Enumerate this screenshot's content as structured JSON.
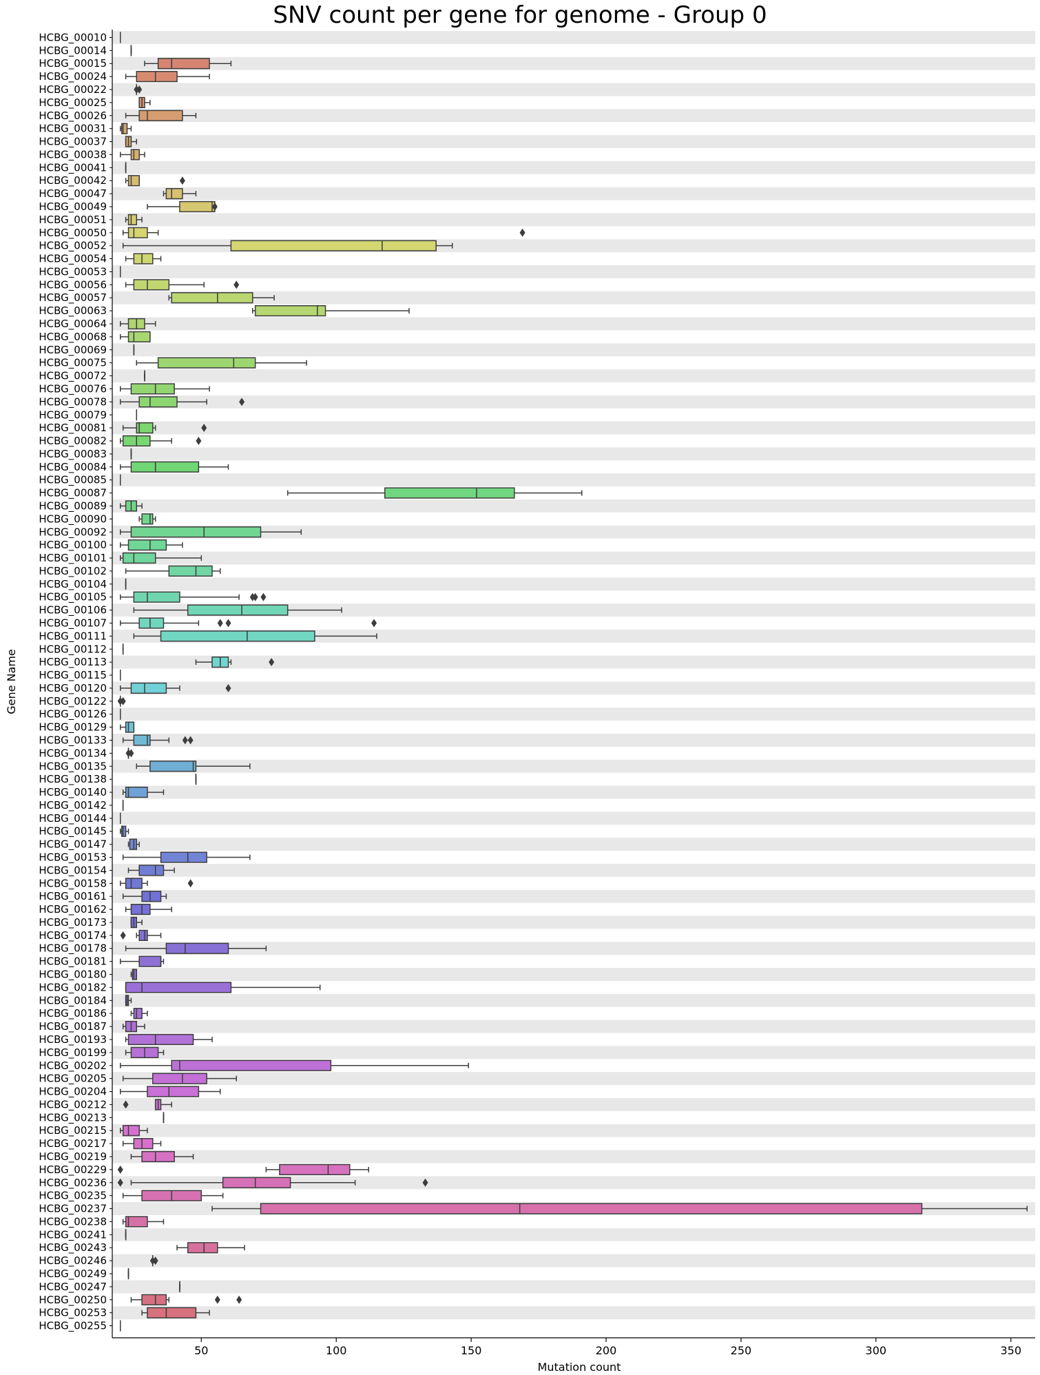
{
  "chart_data": {
    "type": "boxplot-horizontal",
    "title": "SNV count per gene for genome - Group 0",
    "xlabel": "Mutation count",
    "ylabel": "Gene Name",
    "xlim": [
      17,
      359
    ],
    "xticks": [
      50,
      100,
      150,
      200,
      250,
      300,
      350
    ],
    "row_banding": true,
    "orientation": "horizontal",
    "genes": [
      {
        "name": "HCBG_00010",
        "whislo": 20,
        "q1": 20,
        "med": 20,
        "q3": 20,
        "whishi": 20,
        "fliers": []
      },
      {
        "name": "HCBG_00014",
        "whislo": 24,
        "q1": 24,
        "med": 24,
        "q3": 24,
        "whishi": 24,
        "fliers": []
      },
      {
        "name": "HCBG_00015",
        "whislo": 29,
        "q1": 34,
        "med": 39,
        "q3": 53,
        "whishi": 61,
        "fliers": []
      },
      {
        "name": "HCBG_00024",
        "whislo": 22,
        "q1": 26,
        "med": 33,
        "q3": 41,
        "whishi": 53,
        "fliers": []
      },
      {
        "name": "HCBG_00022",
        "whislo": 26,
        "q1": 26,
        "med": 26,
        "q3": 26,
        "whishi": 26,
        "fliers": [
          26,
          27
        ]
      },
      {
        "name": "HCBG_00025",
        "whislo": 27,
        "q1": 27,
        "med": 28,
        "q3": 29,
        "whishi": 31,
        "fliers": []
      },
      {
        "name": "HCBG_00026",
        "whislo": 22,
        "q1": 27,
        "med": 30,
        "q3": 43,
        "whishi": 48,
        "fliers": []
      },
      {
        "name": "HCBG_00031",
        "whislo": 20,
        "q1": 20.5,
        "med": 21,
        "q3": 22.5,
        "whishi": 24,
        "fliers": []
      },
      {
        "name": "HCBG_00037",
        "whislo": 22,
        "q1": 22,
        "med": 23,
        "q3": 24,
        "whishi": 26,
        "fliers": []
      },
      {
        "name": "HCBG_00038",
        "whislo": 20,
        "q1": 24,
        "med": 25,
        "q3": 27,
        "whishi": 29,
        "fliers": []
      },
      {
        "name": "HCBG_00041",
        "whislo": 22,
        "q1": 22,
        "med": 22,
        "q3": 22,
        "whishi": 22,
        "fliers": []
      },
      {
        "name": "HCBG_00042",
        "whislo": 22,
        "q1": 23,
        "med": 24,
        "q3": 27,
        "whishi": 27,
        "fliers": [
          43
        ]
      },
      {
        "name": "HCBG_00047",
        "whislo": 36,
        "q1": 37,
        "med": 39,
        "q3": 43,
        "whishi": 48,
        "fliers": []
      },
      {
        "name": "HCBG_00049",
        "whislo": 30,
        "q1": 42,
        "med": 54,
        "q3": 55,
        "whishi": 55,
        "fliers": [
          55
        ]
      },
      {
        "name": "HCBG_00051",
        "whislo": 22,
        "q1": 23,
        "med": 24,
        "q3": 26,
        "whishi": 28,
        "fliers": []
      },
      {
        "name": "HCBG_00050",
        "whislo": 21,
        "q1": 23,
        "med": 25,
        "q3": 30,
        "whishi": 34,
        "fliers": [
          169
        ]
      },
      {
        "name": "HCBG_00052",
        "whislo": 21,
        "q1": 61,
        "med": 117,
        "q3": 137,
        "whishi": 143,
        "fliers": []
      },
      {
        "name": "HCBG_00054",
        "whislo": 22,
        "q1": 25,
        "med": 28,
        "q3": 32,
        "whishi": 35,
        "fliers": []
      },
      {
        "name": "HCBG_00053",
        "whislo": 20,
        "q1": 20,
        "med": 20,
        "q3": 20,
        "whishi": 20,
        "fliers": []
      },
      {
        "name": "HCBG_00056",
        "whislo": 22,
        "q1": 25,
        "med": 30,
        "q3": 38,
        "whishi": 51,
        "fliers": [
          63
        ]
      },
      {
        "name": "HCBG_00057",
        "whislo": 38,
        "q1": 39,
        "med": 56,
        "q3": 69,
        "whishi": 77,
        "fliers": []
      },
      {
        "name": "HCBG_00063",
        "whislo": 69,
        "q1": 70,
        "med": 93,
        "q3": 96,
        "whishi": 127,
        "fliers": []
      },
      {
        "name": "HCBG_00064",
        "whislo": 20,
        "q1": 23,
        "med": 26,
        "q3": 29,
        "whishi": 33,
        "fliers": []
      },
      {
        "name": "HCBG_00068",
        "whislo": 20,
        "q1": 23,
        "med": 25,
        "q3": 31,
        "whishi": 31,
        "fliers": []
      },
      {
        "name": "HCBG_00069",
        "whislo": 25,
        "q1": 25,
        "med": 25,
        "q3": 25,
        "whishi": 25,
        "fliers": []
      },
      {
        "name": "HCBG_00075",
        "whislo": 26,
        "q1": 34,
        "med": 62,
        "q3": 70,
        "whishi": 89,
        "fliers": []
      },
      {
        "name": "HCBG_00072",
        "whislo": 29,
        "q1": 29,
        "med": 29,
        "q3": 29,
        "whishi": 29,
        "fliers": []
      },
      {
        "name": "HCBG_00076",
        "whislo": 20,
        "q1": 24,
        "med": 33,
        "q3": 40,
        "whishi": 53,
        "fliers": []
      },
      {
        "name": "HCBG_00078",
        "whislo": 20,
        "q1": 27,
        "med": 31,
        "q3": 41,
        "whishi": 52,
        "fliers": [
          65
        ]
      },
      {
        "name": "HCBG_00079",
        "whislo": 26,
        "q1": 26,
        "med": 26,
        "q3": 26,
        "whishi": 26,
        "fliers": []
      },
      {
        "name": "HCBG_00081",
        "whislo": 21,
        "q1": 26,
        "med": 27,
        "q3": 32,
        "whishi": 33,
        "fliers": [
          51
        ]
      },
      {
        "name": "HCBG_00082",
        "whislo": 20,
        "q1": 21,
        "med": 26,
        "q3": 31,
        "whishi": 39,
        "fliers": [
          49
        ]
      },
      {
        "name": "HCBG_00083",
        "whislo": 24,
        "q1": 24,
        "med": 24,
        "q3": 24,
        "whishi": 24,
        "fliers": []
      },
      {
        "name": "HCBG_00084",
        "whislo": 20,
        "q1": 24,
        "med": 33,
        "q3": 49,
        "whishi": 60,
        "fliers": []
      },
      {
        "name": "HCBG_00085",
        "whislo": 20,
        "q1": 20,
        "med": 20,
        "q3": 20,
        "whishi": 20,
        "fliers": []
      },
      {
        "name": "HCBG_00087",
        "whislo": 82,
        "q1": 118,
        "med": 152,
        "q3": 166,
        "whishi": 191,
        "fliers": []
      },
      {
        "name": "HCBG_00089",
        "whislo": 20,
        "q1": 22,
        "med": 24,
        "q3": 26,
        "whishi": 28,
        "fliers": []
      },
      {
        "name": "HCBG_00090",
        "whislo": 27,
        "q1": 28,
        "med": 31,
        "q3": 32,
        "whishi": 33,
        "fliers": []
      },
      {
        "name": "HCBG_00092",
        "whislo": 20,
        "q1": 24,
        "med": 51,
        "q3": 72,
        "whishi": 87,
        "fliers": []
      },
      {
        "name": "HCBG_00100",
        "whislo": 20,
        "q1": 23,
        "med": 31,
        "q3": 37,
        "whishi": 43,
        "fliers": []
      },
      {
        "name": "HCBG_00101",
        "whislo": 20,
        "q1": 21,
        "med": 25,
        "q3": 33,
        "whishi": 50,
        "fliers": []
      },
      {
        "name": "HCBG_00102",
        "whislo": 22,
        "q1": 38,
        "med": 48,
        "q3": 54,
        "whishi": 57,
        "fliers": []
      },
      {
        "name": "HCBG_00104",
        "whislo": 22,
        "q1": 22,
        "med": 22,
        "q3": 22,
        "whishi": 22,
        "fliers": []
      },
      {
        "name": "HCBG_00105",
        "whislo": 20,
        "q1": 25,
        "med": 30,
        "q3": 42,
        "whishi": 64,
        "fliers": [
          69,
          70,
          73
        ]
      },
      {
        "name": "HCBG_00106",
        "whislo": 25,
        "q1": 45,
        "med": 65,
        "q3": 82,
        "whishi": 102,
        "fliers": []
      },
      {
        "name": "HCBG_00107",
        "whislo": 20,
        "q1": 27,
        "med": 31,
        "q3": 36,
        "whishi": 49,
        "fliers": [
          57,
          60,
          114
        ]
      },
      {
        "name": "HCBG_00111",
        "whislo": 25,
        "q1": 35,
        "med": 67,
        "q3": 92,
        "whishi": 115,
        "fliers": []
      },
      {
        "name": "HCBG_00112",
        "whislo": 21,
        "q1": 21,
        "med": 21,
        "q3": 21,
        "whishi": 21,
        "fliers": []
      },
      {
        "name": "HCBG_00113",
        "whislo": 48,
        "q1": 54,
        "med": 57,
        "q3": 60,
        "whishi": 61,
        "fliers": [
          76
        ]
      },
      {
        "name": "HCBG_00115",
        "whislo": 20,
        "q1": 20,
        "med": 20,
        "q3": 20,
        "whishi": 20,
        "fliers": []
      },
      {
        "name": "HCBG_00120",
        "whislo": 20,
        "q1": 24,
        "med": 29,
        "q3": 37,
        "whishi": 42,
        "fliers": [
          60
        ]
      },
      {
        "name": "HCBG_00122",
        "whislo": 20,
        "q1": 20,
        "med": 20,
        "q3": 20,
        "whishi": 20,
        "fliers": [
          20,
          21
        ]
      },
      {
        "name": "HCBG_00126",
        "whislo": 20,
        "q1": 20,
        "med": 20,
        "q3": 20,
        "whishi": 20,
        "fliers": []
      },
      {
        "name": "HCBG_00129",
        "whislo": 20,
        "q1": 22,
        "med": 23,
        "q3": 25,
        "whishi": 25,
        "fliers": []
      },
      {
        "name": "HCBG_00133",
        "whislo": 21,
        "q1": 25,
        "med": 30,
        "q3": 31,
        "whishi": 38,
        "fliers": [
          44,
          46
        ]
      },
      {
        "name": "HCBG_00134",
        "whislo": 23,
        "q1": 23,
        "med": 23,
        "q3": 23,
        "whishi": 23,
        "fliers": [
          23,
          24
        ]
      },
      {
        "name": "HCBG_00135",
        "whislo": 26,
        "q1": 31,
        "med": 47,
        "q3": 48,
        "whishi": 68,
        "fliers": []
      },
      {
        "name": "HCBG_00138",
        "whislo": 48,
        "q1": 48,
        "med": 48,
        "q3": 48,
        "whishi": 48,
        "fliers": []
      },
      {
        "name": "HCBG_00140",
        "whislo": 21,
        "q1": 22,
        "med": 23,
        "q3": 30,
        "whishi": 36,
        "fliers": []
      },
      {
        "name": "HCBG_00142",
        "whislo": 21,
        "q1": 21,
        "med": 21,
        "q3": 21,
        "whishi": 21,
        "fliers": []
      },
      {
        "name": "HCBG_00144",
        "whislo": 20,
        "q1": 20,
        "med": 20,
        "q3": 20,
        "whishi": 20,
        "fliers": []
      },
      {
        "name": "HCBG_00145",
        "whislo": 20,
        "q1": 20.5,
        "med": 21,
        "q3": 22,
        "whishi": 23,
        "fliers": []
      },
      {
        "name": "HCBG_00147",
        "whislo": 23,
        "q1": 23.5,
        "med": 25,
        "q3": 26,
        "whishi": 27,
        "fliers": []
      },
      {
        "name": "HCBG_00153",
        "whislo": 21,
        "q1": 35,
        "med": 45,
        "q3": 52,
        "whishi": 68,
        "fliers": []
      },
      {
        "name": "HCBG_00154",
        "whislo": 23,
        "q1": 27,
        "med": 33,
        "q3": 36,
        "whishi": 40,
        "fliers": []
      },
      {
        "name": "HCBG_00158",
        "whislo": 20,
        "q1": 22,
        "med": 24,
        "q3": 28,
        "whishi": 30,
        "fliers": [
          46
        ]
      },
      {
        "name": "HCBG_00161",
        "whislo": 21,
        "q1": 28,
        "med": 31,
        "q3": 35,
        "whishi": 37,
        "fliers": []
      },
      {
        "name": "HCBG_00162",
        "whislo": 22,
        "q1": 24,
        "med": 28,
        "q3": 31,
        "whishi": 39,
        "fliers": []
      },
      {
        "name": "HCBG_00173",
        "whislo": 24,
        "q1": 24,
        "med": 25,
        "q3": 26,
        "whishi": 28,
        "fliers": []
      },
      {
        "name": "HCBG_00174",
        "whislo": 26,
        "q1": 27,
        "med": 29,
        "q3": 30,
        "whishi": 35,
        "fliers": [
          21
        ]
      },
      {
        "name": "HCBG_00178",
        "whislo": 22,
        "q1": 37,
        "med": 44,
        "q3": 60,
        "whishi": 74,
        "fliers": []
      },
      {
        "name": "HCBG_00181",
        "whislo": 20,
        "q1": 27,
        "med": 35,
        "q3": 35,
        "whishi": 36,
        "fliers": []
      },
      {
        "name": "HCBG_00180",
        "whislo": 24,
        "q1": 24.5,
        "med": 25,
        "q3": 26,
        "whishi": 26,
        "fliers": []
      },
      {
        "name": "HCBG_00182",
        "whislo": 22,
        "q1": 22,
        "med": 28,
        "q3": 61,
        "whishi": 94,
        "fliers": []
      },
      {
        "name": "HCBG_00184",
        "whislo": 22,
        "q1": 22,
        "med": 22.5,
        "q3": 23,
        "whishi": 24,
        "fliers": []
      },
      {
        "name": "HCBG_00186",
        "whislo": 24,
        "q1": 25,
        "med": 26,
        "q3": 28,
        "whishi": 30,
        "fliers": []
      },
      {
        "name": "HCBG_00187",
        "whislo": 21,
        "q1": 22,
        "med": 24,
        "q3": 26,
        "whishi": 29,
        "fliers": []
      },
      {
        "name": "HCBG_00193",
        "whislo": 22,
        "q1": 23,
        "med": 33,
        "q3": 47,
        "whishi": 54,
        "fliers": []
      },
      {
        "name": "HCBG_00199",
        "whislo": 22,
        "q1": 24,
        "med": 29,
        "q3": 34,
        "whishi": 36,
        "fliers": []
      },
      {
        "name": "HCBG_00202",
        "whislo": 20,
        "q1": 39,
        "med": 42,
        "q3": 98,
        "whishi": 149,
        "fliers": []
      },
      {
        "name": "HCBG_00205",
        "whislo": 21,
        "q1": 32,
        "med": 43,
        "q3": 52,
        "whishi": 63,
        "fliers": []
      },
      {
        "name": "HCBG_00204",
        "whislo": 20,
        "q1": 30,
        "med": 38,
        "q3": 49,
        "whishi": 57,
        "fliers": []
      },
      {
        "name": "HCBG_00212",
        "whislo": 33,
        "q1": 33,
        "med": 34,
        "q3": 35,
        "whishi": 39,
        "fliers": [
          22
        ]
      },
      {
        "name": "HCBG_00213",
        "whislo": 36,
        "q1": 36,
        "med": 36,
        "q3": 36,
        "whishi": 36,
        "fliers": []
      },
      {
        "name": "HCBG_00215",
        "whislo": 20,
        "q1": 21,
        "med": 23,
        "q3": 27,
        "whishi": 30,
        "fliers": []
      },
      {
        "name": "HCBG_00217",
        "whislo": 21,
        "q1": 25,
        "med": 28,
        "q3": 32,
        "whishi": 35,
        "fliers": []
      },
      {
        "name": "HCBG_00219",
        "whislo": 24,
        "q1": 28,
        "med": 33,
        "q3": 40,
        "whishi": 47,
        "fliers": []
      },
      {
        "name": "HCBG_00229",
        "whislo": 74,
        "q1": 79,
        "med": 97,
        "q3": 105,
        "whishi": 112,
        "fliers": [
          20
        ]
      },
      {
        "name": "HCBG_00236",
        "whislo": 24,
        "q1": 58,
        "med": 70,
        "q3": 83,
        "whishi": 107,
        "fliers": [
          20,
          133
        ]
      },
      {
        "name": "HCBG_00235",
        "whislo": 21,
        "q1": 28,
        "med": 39,
        "q3": 50,
        "whishi": 58,
        "fliers": []
      },
      {
        "name": "HCBG_00237",
        "whislo": 54,
        "q1": 72,
        "med": 168,
        "q3": 317,
        "whishi": 356,
        "fliers": []
      },
      {
        "name": "HCBG_00238",
        "whislo": 21,
        "q1": 22,
        "med": 23,
        "q3": 30,
        "whishi": 36,
        "fliers": []
      },
      {
        "name": "HCBG_00241",
        "whislo": 22,
        "q1": 22,
        "med": 22,
        "q3": 22,
        "whishi": 22,
        "fliers": []
      },
      {
        "name": "HCBG_00243",
        "whislo": 41,
        "q1": 45,
        "med": 51,
        "q3": 56,
        "whishi": 66,
        "fliers": []
      },
      {
        "name": "HCBG_00246",
        "whislo": 32,
        "q1": 32,
        "med": 32,
        "q3": 32,
        "whishi": 32,
        "fliers": [
          32,
          33
        ]
      },
      {
        "name": "HCBG_00249",
        "whislo": 23,
        "q1": 23,
        "med": 23,
        "q3": 23,
        "whishi": 23,
        "fliers": []
      },
      {
        "name": "HCBG_00247",
        "whislo": 42,
        "q1": 42,
        "med": 42,
        "q3": 42,
        "whishi": 42,
        "fliers": []
      },
      {
        "name": "HCBG_00250",
        "whislo": 24,
        "q1": 28,
        "med": 33,
        "q3": 37,
        "whishi": 38,
        "fliers": [
          56,
          64
        ]
      },
      {
        "name": "HCBG_00253",
        "whislo": 28,
        "q1": 30,
        "med": 37,
        "q3": 48,
        "whishi": 53,
        "fliers": []
      },
      {
        "name": "HCBG_00255",
        "whislo": 20,
        "q1": 20,
        "med": 20,
        "q3": 20,
        "whishi": 20,
        "fliers": []
      }
    ]
  }
}
